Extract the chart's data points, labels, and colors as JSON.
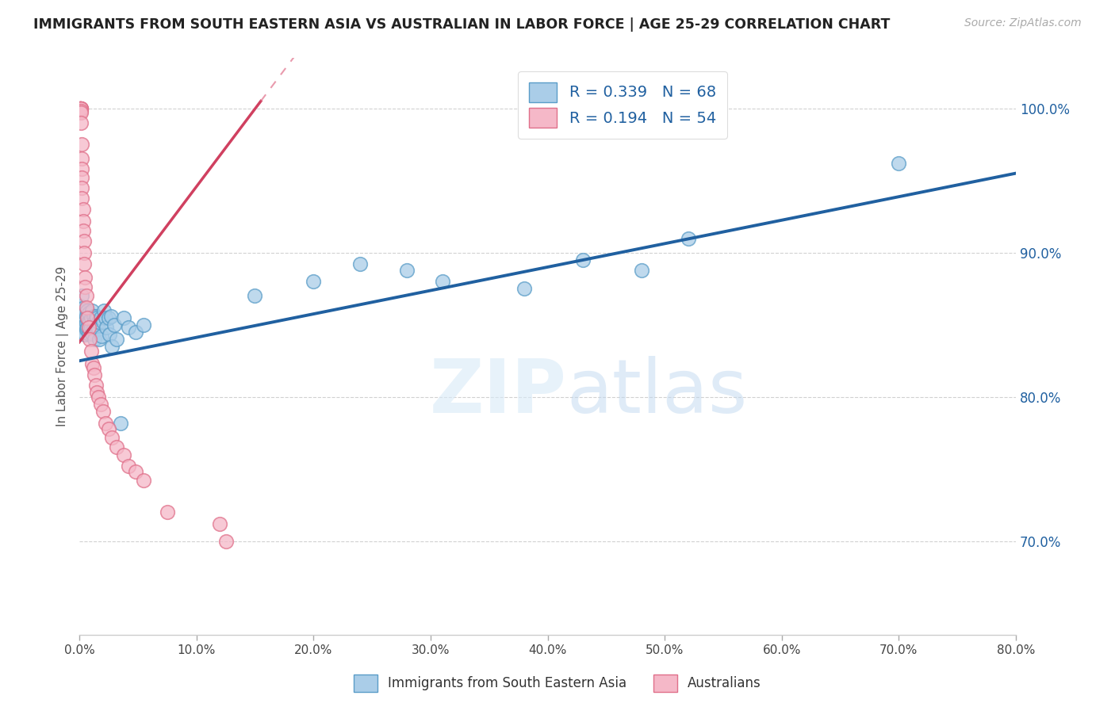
{
  "title": "IMMIGRANTS FROM SOUTH EASTERN ASIA VS AUSTRALIAN IN LABOR FORCE | AGE 25-29 CORRELATION CHART",
  "source": "Source: ZipAtlas.com",
  "ylabel": "In Labor Force | Age 25-29",
  "legend_blue_label": "Immigrants from South Eastern Asia",
  "legend_pink_label": "Australians",
  "R_blue": 0.339,
  "N_blue": 68,
  "R_pink": 0.194,
  "N_pink": 54,
  "blue_color": "#aacde8",
  "pink_color": "#f5b8c8",
  "blue_edge_color": "#5a9dc8",
  "pink_edge_color": "#e0708a",
  "blue_line_color": "#2060a0",
  "pink_line_color": "#d04060",
  "watermark_zip": "ZIP",
  "watermark_atlas": "atlas",
  "xmin": 0.0,
  "xmax": 0.8,
  "ymin": 0.635,
  "ymax": 1.035,
  "yticks": [
    0.7,
    0.8,
    0.9,
    1.0
  ],
  "xticks": [
    0.0,
    0.1,
    0.2,
    0.3,
    0.4,
    0.5,
    0.6,
    0.7,
    0.8
  ],
  "blue_dots_x": [
    0.001,
    0.001,
    0.002,
    0.002,
    0.002,
    0.003,
    0.003,
    0.003,
    0.003,
    0.004,
    0.004,
    0.004,
    0.005,
    0.005,
    0.005,
    0.005,
    0.006,
    0.006,
    0.006,
    0.007,
    0.007,
    0.007,
    0.008,
    0.008,
    0.008,
    0.009,
    0.009,
    0.01,
    0.01,
    0.011,
    0.011,
    0.012,
    0.012,
    0.013,
    0.013,
    0.014,
    0.014,
    0.015,
    0.016,
    0.016,
    0.017,
    0.018,
    0.019,
    0.02,
    0.021,
    0.022,
    0.023,
    0.025,
    0.026,
    0.027,
    0.028,
    0.03,
    0.032,
    0.035,
    0.038,
    0.042,
    0.048,
    0.055,
    0.15,
    0.2,
    0.24,
    0.28,
    0.31,
    0.38,
    0.43,
    0.48,
    0.52,
    0.7
  ],
  "blue_dots_y": [
    0.855,
    0.863,
    0.848,
    0.857,
    0.87,
    0.852,
    0.86,
    0.845,
    0.858,
    0.853,
    0.848,
    0.862,
    0.855,
    0.85,
    0.843,
    0.858,
    0.856,
    0.851,
    0.847,
    0.854,
    0.848,
    0.86,
    0.853,
    0.844,
    0.858,
    0.852,
    0.847,
    0.855,
    0.848,
    0.86,
    0.844,
    0.856,
    0.848,
    0.852,
    0.84,
    0.856,
    0.848,
    0.855,
    0.847,
    0.852,
    0.84,
    0.855,
    0.842,
    0.852,
    0.86,
    0.855,
    0.848,
    0.855,
    0.843,
    0.856,
    0.835,
    0.85,
    0.84,
    0.782,
    0.855,
    0.848,
    0.845,
    0.85,
    0.87,
    0.88,
    0.892,
    0.888,
    0.88,
    0.875,
    0.895,
    0.888,
    0.91,
    0.962
  ],
  "pink_dots_x": [
    0.0005,
    0.0005,
    0.0005,
    0.0005,
    0.0005,
    0.0007,
    0.0008,
    0.001,
    0.001,
    0.001,
    0.001,
    0.001,
    0.001,
    0.001,
    0.001,
    0.002,
    0.002,
    0.002,
    0.002,
    0.002,
    0.002,
    0.003,
    0.003,
    0.003,
    0.004,
    0.004,
    0.004,
    0.005,
    0.005,
    0.006,
    0.006,
    0.007,
    0.008,
    0.009,
    0.01,
    0.011,
    0.012,
    0.013,
    0.014,
    0.015,
    0.016,
    0.018,
    0.02,
    0.022,
    0.025,
    0.028,
    0.032,
    0.038,
    0.042,
    0.048,
    0.055,
    0.075,
    0.12,
    0.125
  ],
  "pink_dots_y": [
    1.0,
    1.0,
    1.0,
    1.0,
    1.0,
    1.0,
    1.0,
    1.0,
    1.0,
    1.0,
    1.0,
    1.0,
    0.998,
    0.997,
    0.99,
    0.975,
    0.965,
    0.958,
    0.952,
    0.945,
    0.938,
    0.93,
    0.922,
    0.915,
    0.908,
    0.9,
    0.892,
    0.883,
    0.876,
    0.87,
    0.862,
    0.855,
    0.848,
    0.84,
    0.832,
    0.823,
    0.82,
    0.815,
    0.808,
    0.803,
    0.8,
    0.795,
    0.79,
    0.782,
    0.778,
    0.772,
    0.765,
    0.76,
    0.752,
    0.748,
    0.742,
    0.72,
    0.712,
    0.7
  ],
  "blue_trend_x": [
    0.0,
    0.8
  ],
  "blue_trend_y": [
    0.825,
    0.955
  ],
  "pink_trend_x": [
    0.0,
    0.155
  ],
  "pink_trend_y": [
    0.838,
    1.005
  ]
}
